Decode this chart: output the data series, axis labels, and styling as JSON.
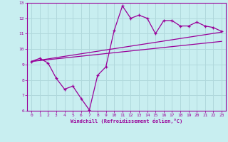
{
  "xlabel": "Windchill (Refroidissement éolien,°C)",
  "background_color": "#c8eef0",
  "line_color": "#990099",
  "grid_color": "#b0d8dc",
  "xlim": [
    -0.5,
    23.5
  ],
  "ylim": [
    6,
    13
  ],
  "xticks": [
    0,
    1,
    2,
    3,
    4,
    5,
    6,
    7,
    8,
    9,
    10,
    11,
    12,
    13,
    14,
    15,
    16,
    17,
    18,
    19,
    20,
    21,
    22,
    23
  ],
  "yticks": [
    6,
    7,
    8,
    9,
    10,
    11,
    12,
    13
  ],
  "zigzag_x": [
    0,
    1,
    2,
    3,
    4,
    5,
    6,
    7,
    8,
    9,
    10,
    11,
    12,
    13,
    14,
    15,
    16,
    17,
    18,
    19,
    20,
    21,
    22,
    23
  ],
  "zigzag_y": [
    9.2,
    9.4,
    9.1,
    8.1,
    7.4,
    7.6,
    6.8,
    6.05,
    8.3,
    8.85,
    11.2,
    12.8,
    12.0,
    12.2,
    12.0,
    11.0,
    11.85,
    11.85,
    11.5,
    11.5,
    11.75,
    11.5,
    11.4,
    11.15
  ],
  "upper_line_x": [
    0,
    23
  ],
  "upper_line_y": [
    9.2,
    11.1
  ],
  "lower_line_x": [
    0,
    23
  ],
  "lower_line_y": [
    9.2,
    10.5
  ]
}
